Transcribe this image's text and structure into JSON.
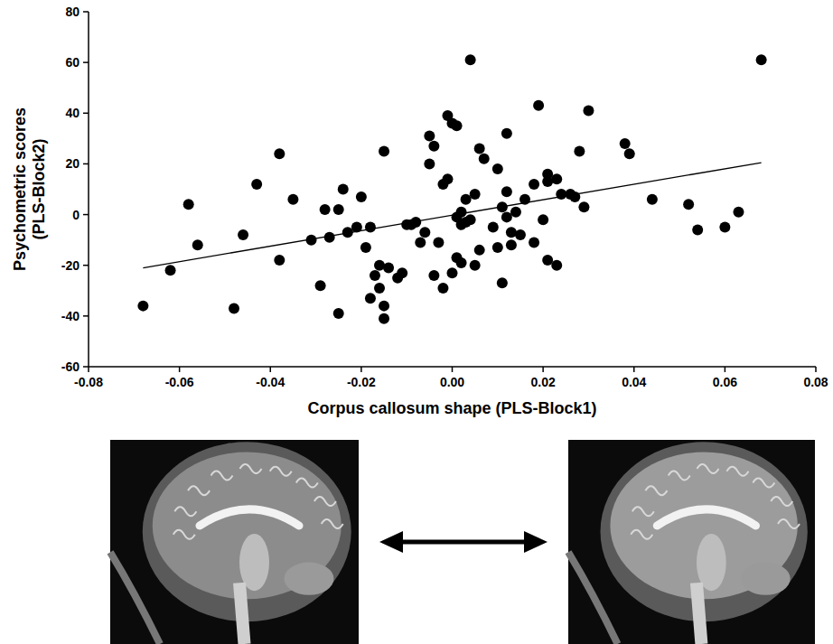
{
  "chart_data": {
    "type": "scatter",
    "xlabel": "Corpus callosum shape (PLS-Block1)",
    "ylabel": "Psychometric scores (PLS-Block2)",
    "color": "#000000",
    "marker": "circle",
    "grid": false,
    "xlim": [
      -0.08,
      0.08
    ],
    "xticks": [
      -0.08,
      -0.06,
      -0.04,
      -0.02,
      {
        "value": 0,
        "label": "0.00"
      },
      0.02,
      0.04,
      0.06,
      0.08
    ],
    "ylim": [
      -60,
      80
    ],
    "yticks": [
      -60,
      -40,
      -20,
      0,
      20,
      40,
      60,
      80
    ],
    "x": [
      -0.068,
      -0.062,
      -0.058,
      -0.056,
      -0.048,
      -0.046,
      -0.043,
      -0.038,
      -0.038,
      -0.035,
      -0.031,
      -0.029,
      -0.028,
      -0.027,
      -0.025,
      -0.025,
      -0.024,
      -0.023,
      -0.021,
      -0.02,
      -0.019,
      -0.018,
      -0.018,
      -0.017,
      -0.016,
      -0.016,
      -0.015,
      -0.015,
      -0.015,
      -0.014,
      -0.012,
      -0.011,
      -0.01,
      -0.009,
      -0.008,
      -0.007,
      -0.006,
      -0.005,
      -0.005,
      -0.004,
      -0.004,
      -0.003,
      -0.002,
      -0.002,
      -0.001,
      -0.001,
      0,
      0,
      0.001,
      0.001,
      0.001,
      0.002,
      0.002,
      0.002,
      0.003,
      0.003,
      0.004,
      0.004,
      0.005,
      0.005,
      0.006,
      0.006,
      0.007,
      0.009,
      0.01,
      0.01,
      0.011,
      0.011,
      0.012,
      0.012,
      0.012,
      0.013,
      0.013,
      0.014,
      0.015,
      0.016,
      0.018,
      0.018,
      0.019,
      0.02,
      0.021,
      0.021,
      0.021,
      0.023,
      0.023,
      0.024,
      0.026,
      0.027,
      0.028,
      0.029,
      0.03,
      0.038,
      0.039,
      0.044,
      0.052,
      0.054,
      0.06,
      0.063,
      0.068
    ],
    "values": [
      -36,
      -22,
      4,
      -12,
      -37,
      -8,
      12,
      24,
      -18,
      6,
      -10,
      -28,
      2,
      -9,
      -39,
      2,
      10,
      -7,
      -5,
      7,
      -13,
      -33,
      -5,
      -24,
      -20,
      -29,
      25,
      -41,
      -36,
      -21,
      -25,
      -23,
      -4,
      -4,
      -3,
      -11,
      -7,
      31,
      20,
      27,
      -24,
      -11,
      -29,
      12,
      14,
      39,
      -23,
      36,
      -1,
      35,
      -17,
      -19,
      -4,
      1,
      6,
      -3,
      61,
      -2,
      8,
      -20,
      -14,
      26,
      22,
      -5,
      -13,
      18,
      3,
      -27,
      32,
      -1,
      9,
      -12,
      -7,
      1,
      -8,
      6,
      -11,
      12,
      43,
      -2,
      13,
      -18,
      16,
      -20,
      14,
      8,
      8,
      7,
      25,
      3,
      41,
      28,
      24,
      6,
      4,
      -6,
      -5,
      1,
      61
    ],
    "trend_line": {
      "x": [
        -0.068,
        0.068
      ],
      "values": [
        -21,
        20.5
      ]
    }
  }
}
